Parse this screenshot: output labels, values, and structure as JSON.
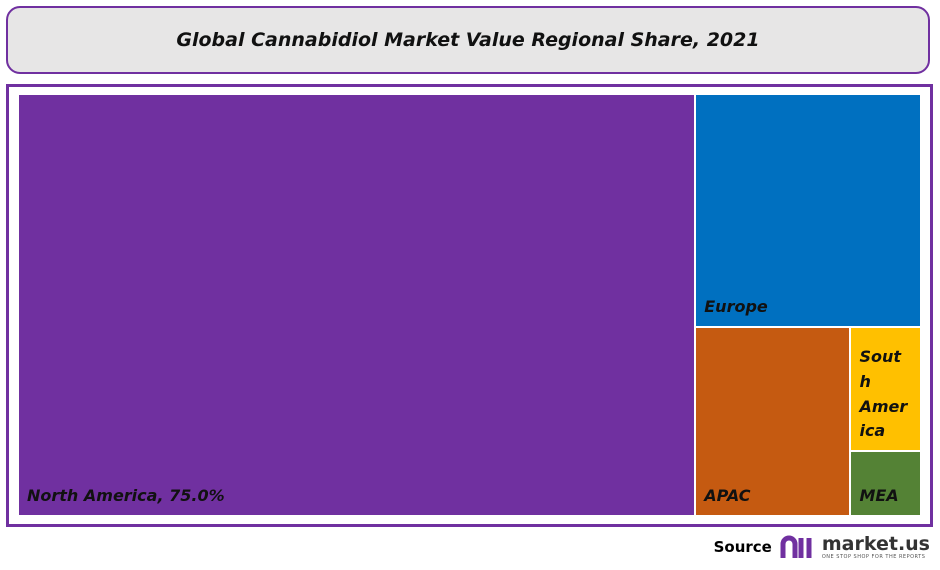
{
  "chart_data": {
    "type": "treemap",
    "title": "Global Cannabidiol Market Value Regional Share, 2021",
    "categories": [
      "North America, 75.0%",
      "Europe",
      "APAC",
      "South America",
      "MEA"
    ],
    "values": [
      75.0,
      13.8,
      7.7,
      2.3,
      1.2
    ],
    "colors": [
      "#7030a0",
      "#0070c0",
      "#c55a11",
      "#ffc000",
      "#548235"
    ]
  },
  "source": {
    "label": "Source",
    "brand": "market.us",
    "tagline": "ONE STOP SHOP FOR THE REPORTS"
  }
}
